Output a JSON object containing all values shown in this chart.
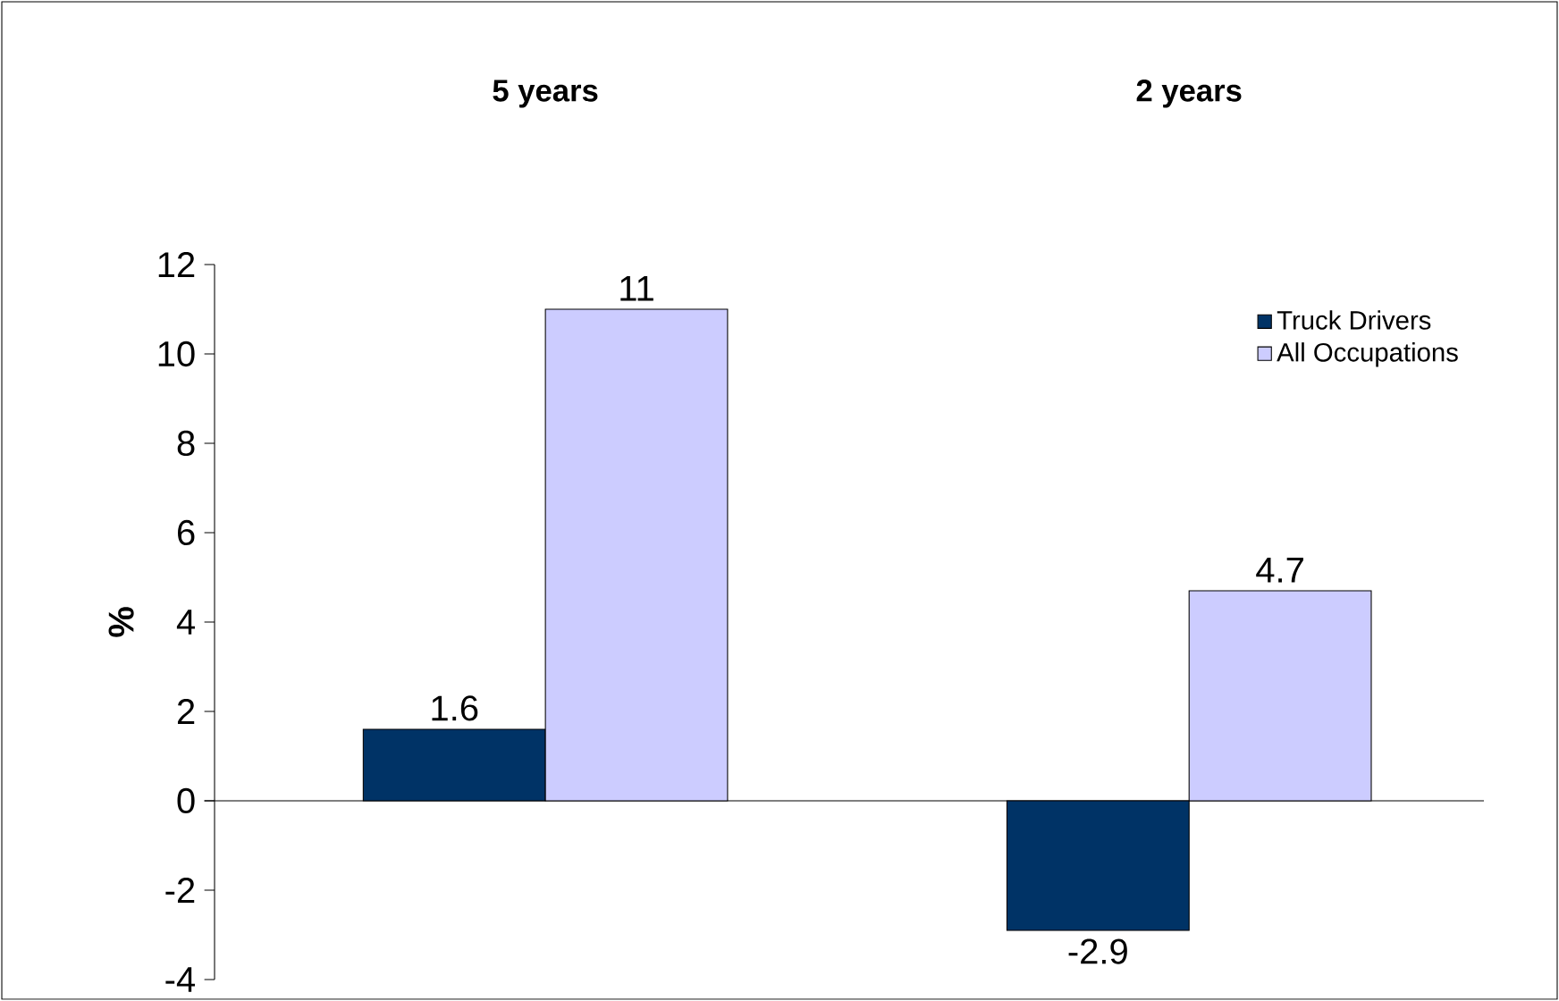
{
  "chart_data": {
    "type": "bar",
    "categories": [
      "5 years",
      "2 years"
    ],
    "ylabel": "%",
    "series": [
      {
        "name": "Truck Drivers",
        "color": "#003366",
        "values": [
          1.6,
          -2.9
        ]
      },
      {
        "name": "All Occupations",
        "color": "#ccccff",
        "values": [
          11,
          4.7
        ]
      }
    ],
    "ylim": [
      -4,
      12
    ],
    "yticks": [
      -4,
      -2,
      0,
      2,
      4,
      6,
      8,
      10,
      12
    ],
    "legend": "top right",
    "data_labels": true
  }
}
